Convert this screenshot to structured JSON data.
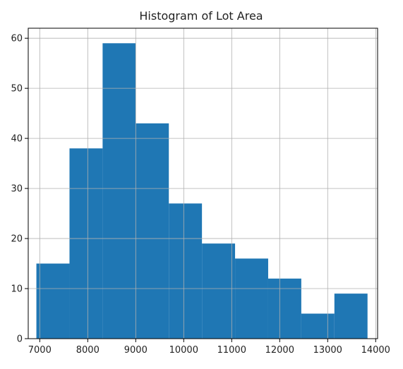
{
  "chart_data": {
    "type": "bar",
    "title": "Histogram of Lot Area",
    "xlabel": "",
    "ylabel": "",
    "xlim": [
      6760,
      14040
    ],
    "ylim": [
      0,
      62
    ],
    "grid": true,
    "bins": [
      {
        "x0": 6930,
        "x1": 7620,
        "count": 15
      },
      {
        "x0": 7620,
        "x1": 8310,
        "count": 38
      },
      {
        "x0": 8310,
        "x1": 9000,
        "count": 59
      },
      {
        "x0": 9000,
        "x1": 9690,
        "count": 43
      },
      {
        "x0": 9690,
        "x1": 10380,
        "count": 27
      },
      {
        "x0": 10380,
        "x1": 11070,
        "count": 19
      },
      {
        "x0": 11070,
        "x1": 11760,
        "count": 16
      },
      {
        "x0": 11760,
        "x1": 12450,
        "count": 12
      },
      {
        "x0": 12450,
        "x1": 13140,
        "count": 5
      },
      {
        "x0": 13140,
        "x1": 13830,
        "count": 9
      }
    ],
    "xticks": [
      7000,
      8000,
      9000,
      10000,
      11000,
      12000,
      13000,
      14000
    ],
    "yticks": [
      0,
      10,
      20,
      30,
      40,
      50,
      60
    ],
    "colors": {
      "bar": "#1f77b4",
      "grid": "#b0b0b0",
      "axis": "#000000"
    }
  }
}
